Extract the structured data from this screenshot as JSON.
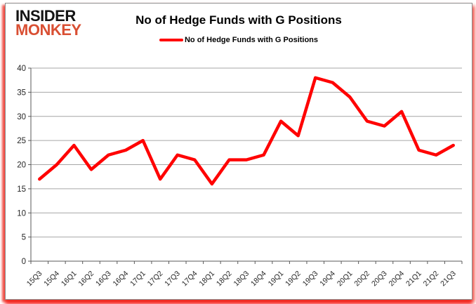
{
  "logo": {
    "line1": "INSIDER",
    "line2": "MONKEY"
  },
  "header": {
    "title": "No of Hedge Funds with G Positions"
  },
  "legend": {
    "label": "No of Hedge Funds with G Positions",
    "swatch_color": "#FF0000"
  },
  "chart_data": {
    "type": "line",
    "title": "No of Hedge Funds with G Positions",
    "categories": [
      "15Q3",
      "15Q4",
      "16Q1",
      "16Q2",
      "16Q3",
      "16Q4",
      "17Q1",
      "17Q2",
      "17Q3",
      "17Q4",
      "18Q1",
      "18Q2",
      "18Q3",
      "18Q4",
      "19Q1",
      "19Q2",
      "19Q3",
      "19Q4",
      "20Q1",
      "20Q2",
      "20Q3",
      "20Q4",
      "21Q1",
      "21Q2",
      "21Q3"
    ],
    "series": [
      {
        "name": "No of Hedge Funds with G Positions",
        "color": "#FF0000",
        "values": [
          17,
          20,
          24,
          19,
          22,
          23,
          25,
          17,
          22,
          21,
          16,
          21,
          21,
          22,
          29,
          26,
          38,
          37,
          34,
          29,
          28,
          31,
          23,
          22,
          24
        ]
      }
    ],
    "xlabel": "",
    "ylabel": "",
    "ylim": [
      0,
      40
    ],
    "y_ticks": [
      0,
      5,
      10,
      15,
      20,
      25,
      30,
      35,
      40
    ],
    "grid": true,
    "legend_position": "top"
  },
  "colors": {
    "line": "#FF0000",
    "grid": "#a6a6a6",
    "axis": "#595959",
    "tick_text": "#262626",
    "logo_accent": "#d94f33",
    "card_border": "#8c8c8c",
    "shadow": "#ec3024"
  }
}
